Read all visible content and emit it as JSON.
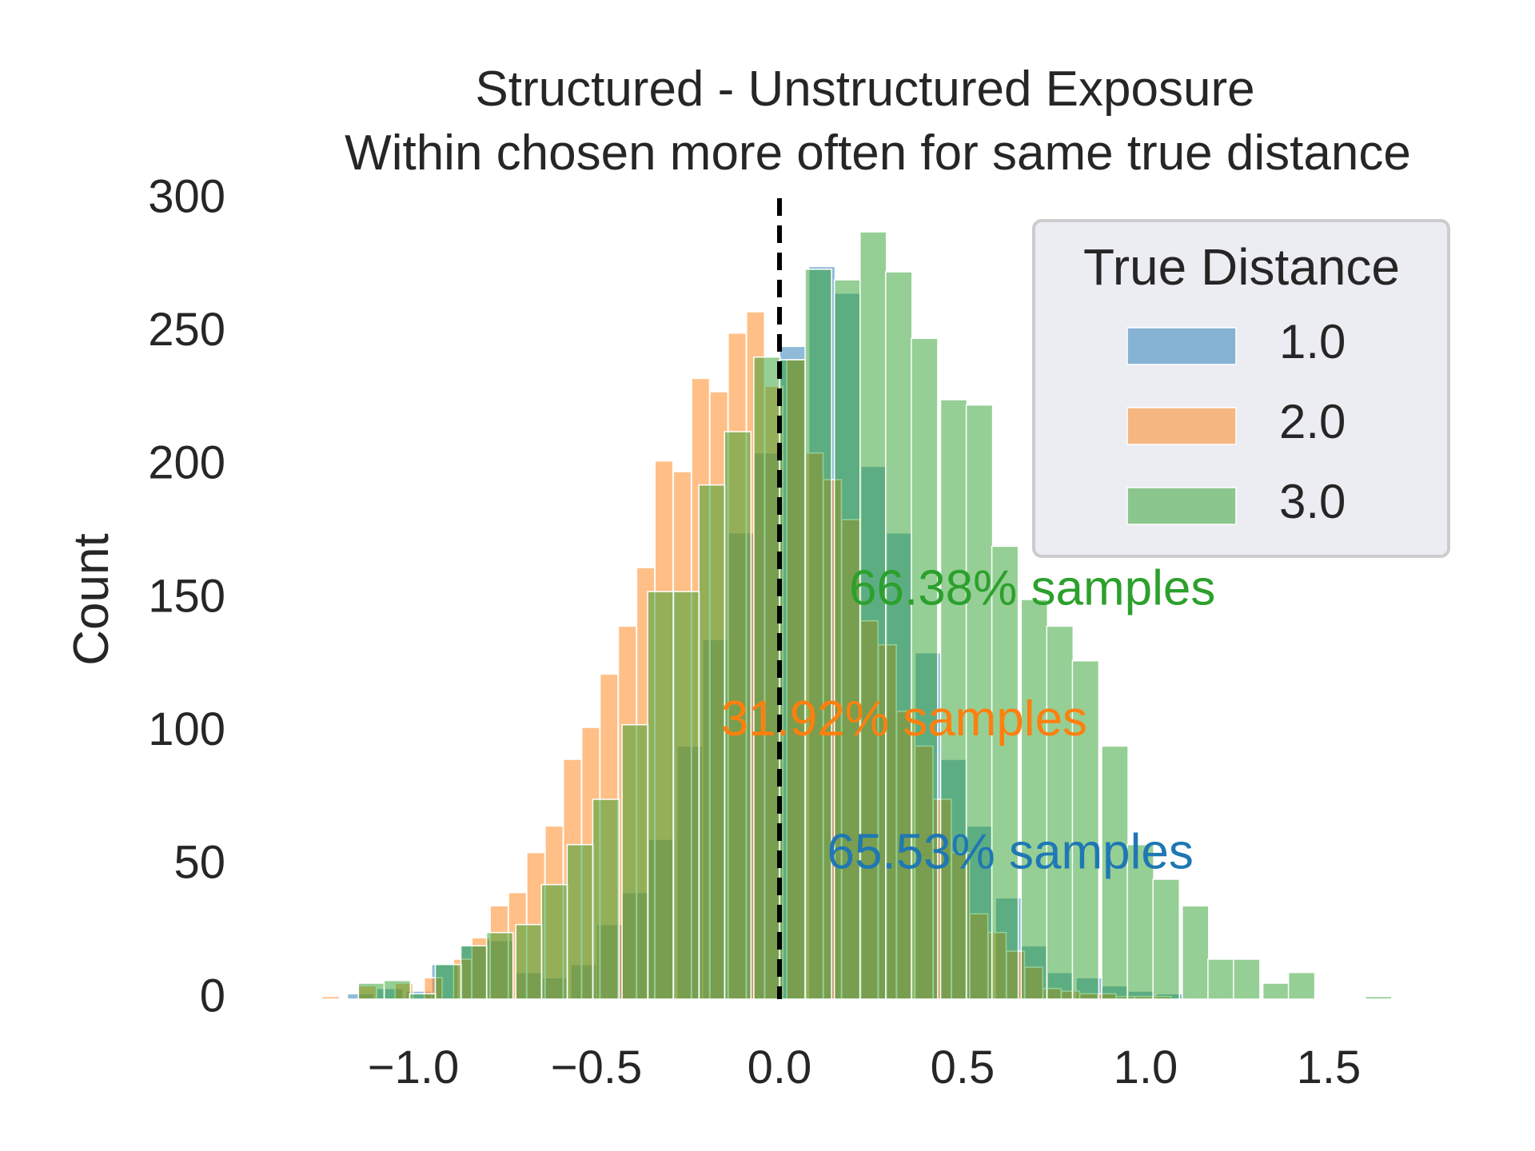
{
  "chart_data": {
    "type": "bar",
    "subtype": "overlaid-histogram",
    "title_lines": [
      "Structured - Unstructured Exposure",
      "Within chosen more often for same true distance"
    ],
    "xlabel": "",
    "ylabel": "Count",
    "xlim": [
      -1.25,
      1.65
    ],
    "ylim": [
      0,
      300
    ],
    "x_ticks": [
      -1.0,
      -0.5,
      0.0,
      0.5,
      1.0,
      1.5
    ],
    "x_tick_labels": [
      "−1.0",
      "−0.5",
      "0.0",
      "0.5",
      "1.0",
      "1.5"
    ],
    "y_ticks": [
      0,
      50,
      100,
      150,
      200,
      250,
      300
    ],
    "y_tick_labels": [
      "0",
      "50",
      "100",
      "150",
      "200",
      "250",
      "300"
    ],
    "grid": false,
    "reference_line": {
      "x": 0.0,
      "style": "dashed",
      "color": "#000000"
    },
    "legend": {
      "title": "True Distance",
      "position": "top-right"
    },
    "series": [
      {
        "name": "1.0",
        "color": "#1f77b4",
        "bin_width": 0.072,
        "bins": [
          [
            -1.18,
            2
          ],
          [
            -1.1,
            4
          ],
          [
            -1.02,
            3
          ],
          [
            -0.95,
            13
          ],
          [
            -0.87,
            20
          ],
          [
            -0.8,
            22
          ],
          [
            -0.72,
            10
          ],
          [
            -0.65,
            8
          ],
          [
            -0.57,
            13
          ],
          [
            -0.5,
            28
          ],
          [
            -0.43,
            40
          ],
          [
            -0.36,
            60
          ],
          [
            -0.28,
            95
          ],
          [
            -0.21,
            135
          ],
          [
            -0.14,
            175
          ],
          [
            -0.07,
            205
          ],
          [
            0.0,
            245
          ],
          [
            0.08,
            275
          ],
          [
            0.15,
            265
          ],
          [
            0.22,
            200
          ],
          [
            0.29,
            175
          ],
          [
            0.37,
            130
          ],
          [
            0.44,
            90
          ],
          [
            0.51,
            65
          ],
          [
            0.59,
            38
          ],
          [
            0.66,
            20
          ],
          [
            0.73,
            10
          ],
          [
            0.81,
            8
          ],
          [
            0.88,
            5
          ],
          [
            0.95,
            3
          ],
          [
            1.03,
            2
          ]
        ]
      },
      {
        "name": "2.0",
        "color": "#ff7f0e",
        "bin_width": 0.049,
        "bins": [
          [
            -1.25,
            1
          ],
          [
            -1.15,
            5
          ],
          [
            -1.05,
            6
          ],
          [
            -0.97,
            8
          ],
          [
            -0.89,
            15
          ],
          [
            -0.84,
            23
          ],
          [
            -0.79,
            35
          ],
          [
            -0.74,
            40
          ],
          [
            -0.69,
            55
          ],
          [
            -0.64,
            65
          ],
          [
            -0.59,
            90
          ],
          [
            -0.54,
            102
          ],
          [
            -0.49,
            122
          ],
          [
            -0.44,
            140
          ],
          [
            -0.39,
            162
          ],
          [
            -0.34,
            202
          ],
          [
            -0.29,
            198
          ],
          [
            -0.24,
            233
          ],
          [
            -0.19,
            228
          ],
          [
            -0.14,
            250
          ],
          [
            -0.09,
            258
          ],
          [
            -0.04,
            230
          ],
          [
            0.02,
            240
          ],
          [
            0.07,
            205
          ],
          [
            0.12,
            195
          ],
          [
            0.17,
            180
          ],
          [
            0.22,
            142
          ],
          [
            0.27,
            133
          ],
          [
            0.32,
            108
          ],
          [
            0.37,
            95
          ],
          [
            0.42,
            75
          ],
          [
            0.47,
            55
          ],
          [
            0.52,
            32
          ],
          [
            0.57,
            25
          ],
          [
            0.62,
            18
          ],
          [
            0.67,
            12
          ],
          [
            0.72,
            4
          ],
          [
            0.77,
            3
          ],
          [
            0.82,
            2
          ],
          [
            0.87,
            2
          ],
          [
            0.92,
            1
          ],
          [
            0.97,
            1
          ],
          [
            1.02,
            1
          ]
        ]
      },
      {
        "name": "3.0",
        "color": "#2ca02c",
        "bin_width": 0.072,
        "bins": [
          [
            -1.15,
            6
          ],
          [
            -1.08,
            7
          ],
          [
            -1.01,
            2
          ],
          [
            -0.94,
            13
          ],
          [
            -0.87,
            20
          ],
          [
            -0.8,
            25
          ],
          [
            -0.72,
            28
          ],
          [
            -0.65,
            43
          ],
          [
            -0.58,
            58
          ],
          [
            -0.51,
            75
          ],
          [
            -0.43,
            103
          ],
          [
            -0.36,
            153
          ],
          [
            -0.29,
            153
          ],
          [
            -0.22,
            193
          ],
          [
            -0.15,
            213
          ],
          [
            -0.07,
            241
          ],
          [
            0.0,
            240
          ],
          [
            0.07,
            274
          ],
          [
            0.15,
            270
          ],
          [
            0.22,
            288
          ],
          [
            0.29,
            273
          ],
          [
            0.36,
            248
          ],
          [
            0.44,
            225
          ],
          [
            0.51,
            223
          ],
          [
            0.58,
            170
          ],
          [
            0.66,
            150
          ],
          [
            0.73,
            140
          ],
          [
            0.8,
            127
          ],
          [
            0.88,
            95
          ],
          [
            0.95,
            58
          ],
          [
            1.02,
            45
          ],
          [
            1.1,
            35
          ],
          [
            1.17,
            15
          ],
          [
            1.24,
            15
          ],
          [
            1.32,
            6
          ],
          [
            1.39,
            10
          ],
          [
            1.6,
            1
          ]
        ]
      }
    ],
    "annotations": [
      {
        "text": "66.38% samples",
        "x": 0.19,
        "y": 153,
        "color": "#2ca02c"
      },
      {
        "text": "31.92% samples",
        "x": -0.16,
        "y": 104,
        "color": "#ff7f0e"
      },
      {
        "text": "65.53% samples",
        "x": 0.13,
        "y": 54,
        "color": "#1f77b4"
      }
    ]
  }
}
